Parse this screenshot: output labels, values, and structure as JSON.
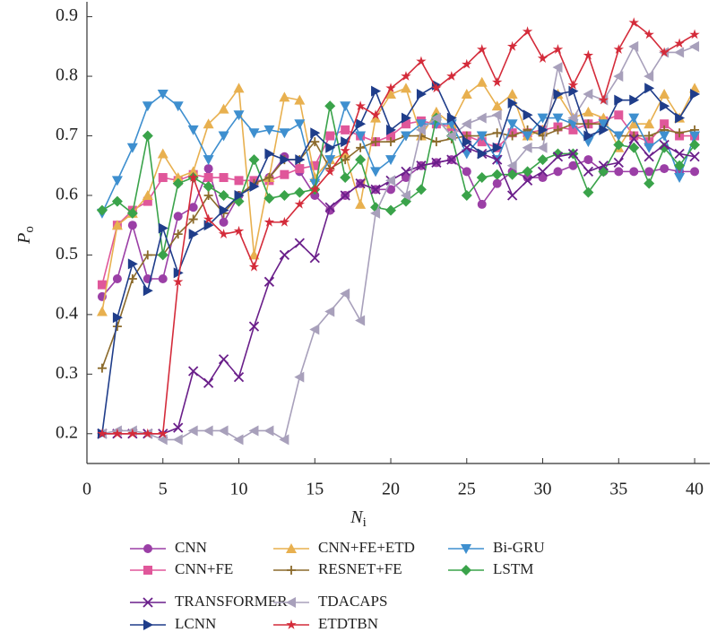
{
  "chart_data": {
    "type": "line",
    "xlabel": "N",
    "xlabel_sub": "i",
    "ylabel": "P",
    "ylabel_sub": "o",
    "x": [
      1,
      2,
      3,
      4,
      5,
      6,
      7,
      8,
      9,
      10,
      11,
      12,
      13,
      14,
      15,
      16,
      17,
      18,
      19,
      20,
      21,
      22,
      23,
      24,
      25,
      26,
      27,
      28,
      29,
      30,
      31,
      32,
      33,
      34,
      35,
      36,
      37,
      38,
      39,
      40
    ],
    "xlim": [
      0,
      41
    ],
    "xticks": [
      0,
      5,
      10,
      15,
      20,
      25,
      30,
      35,
      40
    ],
    "ylim": [
      0.15,
      0.925
    ],
    "yticks": [
      0.2,
      0.3,
      0.4,
      0.5,
      0.6,
      0.7,
      0.8,
      0.9
    ],
    "series": [
      {
        "name": "CNN",
        "color": "#9b3fa6",
        "marker": "circle",
        "values": [
          0.43,
          0.46,
          0.55,
          0.46,
          0.46,
          0.565,
          0.58,
          0.645,
          0.555,
          0.6,
          0.62,
          0.63,
          0.665,
          0.64,
          0.6,
          0.575,
          0.6,
          0.62,
          0.61,
          0.61,
          0.63,
          0.65,
          0.655,
          0.66,
          0.64,
          0.585,
          0.62,
          0.64,
          0.63,
          0.63,
          0.64,
          0.65,
          0.66,
          0.64,
          0.64,
          0.64,
          0.64,
          0.645,
          0.64,
          0.64
        ]
      },
      {
        "name": "CNN+FE",
        "color": "#e0579a",
        "marker": "square",
        "values": [
          0.45,
          0.55,
          0.575,
          0.59,
          0.63,
          0.625,
          0.635,
          0.63,
          0.63,
          0.625,
          0.625,
          0.625,
          0.635,
          0.645,
          0.65,
          0.7,
          0.71,
          0.7,
          0.69,
          0.7,
          0.72,
          0.725,
          0.72,
          0.715,
          0.7,
          0.69,
          0.68,
          0.705,
          0.705,
          0.71,
          0.715,
          0.71,
          0.72,
          0.725,
          0.735,
          0.7,
          0.69,
          0.72,
          0.7,
          0.7
        ]
      },
      {
        "name": "CNN+FE+ETD",
        "color": "#e8b04f",
        "marker": "triangle-up",
        "values": [
          0.405,
          0.55,
          0.57,
          0.6,
          0.67,
          0.63,
          0.64,
          0.72,
          0.745,
          0.78,
          0.5,
          0.63,
          0.765,
          0.76,
          0.63,
          0.66,
          0.67,
          0.585,
          0.73,
          0.77,
          0.78,
          0.7,
          0.74,
          0.72,
          0.77,
          0.79,
          0.75,
          0.77,
          0.7,
          0.71,
          0.77,
          0.73,
          0.74,
          0.73,
          0.68,
          0.72,
          0.72,
          0.77,
          0.73,
          0.78
        ]
      },
      {
        "name": "RESNET+FE",
        "color": "#8b6a2b",
        "marker": "plus",
        "values": [
          0.31,
          0.38,
          0.46,
          0.5,
          0.5,
          0.535,
          0.56,
          0.6,
          0.57,
          0.6,
          0.62,
          0.63,
          0.66,
          0.66,
          0.69,
          0.645,
          0.66,
          0.68,
          0.69,
          0.69,
          0.7,
          0.7,
          0.69,
          0.695,
          0.7,
          0.7,
          0.705,
          0.7,
          0.71,
          0.7,
          0.71,
          0.72,
          0.72,
          0.72,
          0.7,
          0.7,
          0.7,
          0.71,
          0.705,
          0.71
        ]
      },
      {
        "name": "Bi-GRU",
        "color": "#3e8fcf",
        "marker": "triangle-down",
        "values": [
          0.57,
          0.625,
          0.68,
          0.75,
          0.77,
          0.75,
          0.71,
          0.66,
          0.7,
          0.735,
          0.705,
          0.71,
          0.705,
          0.72,
          0.62,
          0.66,
          0.75,
          0.7,
          0.64,
          0.66,
          0.7,
          0.72,
          0.72,
          0.72,
          0.67,
          0.7,
          0.66,
          0.72,
          0.7,
          0.73,
          0.73,
          0.72,
          0.69,
          0.72,
          0.7,
          0.73,
          0.68,
          0.7,
          0.63,
          0.7
        ]
      },
      {
        "name": "LSTM",
        "color": "#3aa34a",
        "marker": "diamond",
        "values": [
          0.575,
          0.59,
          0.57,
          0.7,
          0.5,
          0.62,
          0.63,
          0.615,
          0.6,
          0.59,
          0.66,
          0.595,
          0.6,
          0.605,
          0.61,
          0.75,
          0.63,
          0.66,
          0.58,
          0.575,
          0.59,
          0.61,
          0.73,
          0.7,
          0.6,
          0.63,
          0.635,
          0.635,
          0.64,
          0.66,
          0.67,
          0.67,
          0.605,
          0.64,
          0.685,
          0.68,
          0.62,
          0.68,
          0.65,
          0.685
        ]
      },
      {
        "name": "TRANSFORMER",
        "color": "#6a1f8a",
        "marker": "x",
        "values": [
          0.2,
          0.2,
          0.2,
          0.2,
          0.2,
          0.21,
          0.305,
          0.285,
          0.325,
          0.295,
          0.38,
          0.455,
          0.5,
          0.52,
          0.495,
          0.58,
          0.6,
          0.62,
          0.61,
          0.625,
          0.64,
          0.65,
          0.655,
          0.66,
          0.68,
          0.67,
          0.66,
          0.6,
          0.625,
          0.64,
          0.665,
          0.67,
          0.64,
          0.65,
          0.655,
          0.695,
          0.665,
          0.685,
          0.67,
          0.665
        ]
      },
      {
        "name": "TDACAPS",
        "color": "#a8a0bb",
        "marker": "triangle-left",
        "values": [
          0.2,
          0.205,
          0.205,
          0.2,
          0.19,
          0.19,
          0.205,
          0.205,
          0.205,
          0.19,
          0.205,
          0.205,
          0.19,
          0.295,
          0.375,
          0.405,
          0.435,
          0.39,
          0.57,
          0.625,
          0.6,
          0.71,
          0.73,
          0.7,
          0.72,
          0.73,
          0.735,
          0.65,
          0.68,
          0.68,
          0.815,
          0.73,
          0.77,
          0.76,
          0.8,
          0.85,
          0.8,
          0.84,
          0.84,
          0.85
        ]
      },
      {
        "name": "LCNN",
        "color": "#1f3d8a",
        "marker": "triangle-right",
        "values": [
          0.2,
          0.395,
          0.485,
          0.44,
          0.545,
          0.47,
          0.535,
          0.55,
          0.575,
          0.6,
          0.615,
          0.67,
          0.66,
          0.66,
          0.705,
          0.68,
          0.69,
          0.72,
          0.775,
          0.71,
          0.73,
          0.77,
          0.785,
          0.73,
          0.69,
          0.67,
          0.68,
          0.755,
          0.735,
          0.71,
          0.77,
          0.775,
          0.7,
          0.71,
          0.76,
          0.76,
          0.78,
          0.75,
          0.73,
          0.77
        ]
      },
      {
        "name": "ETDTBN",
        "color": "#d42b3a",
        "marker": "star",
        "values": [
          0.2,
          0.2,
          0.2,
          0.2,
          0.2,
          0.455,
          0.63,
          0.56,
          0.535,
          0.54,
          0.48,
          0.555,
          0.555,
          0.585,
          0.61,
          0.64,
          0.675,
          0.75,
          0.735,
          0.78,
          0.8,
          0.825,
          0.78,
          0.8,
          0.82,
          0.845,
          0.79,
          0.85,
          0.875,
          0.83,
          0.845,
          0.785,
          0.835,
          0.76,
          0.845,
          0.89,
          0.87,
          0.84,
          0.855,
          0.87
        ]
      }
    ]
  }
}
